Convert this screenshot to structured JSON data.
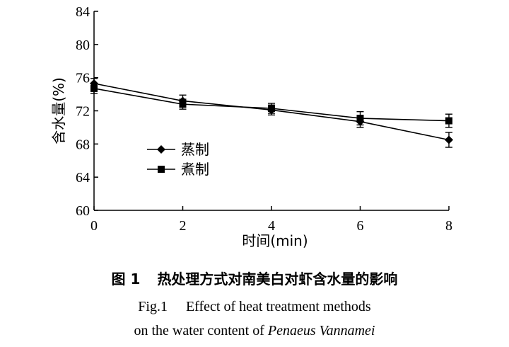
{
  "chart_data": {
    "type": "line",
    "x": [
      0,
      2,
      4,
      6,
      8
    ],
    "xlim": [
      0,
      8
    ],
    "ylim": [
      60,
      84
    ],
    "xticks": [
      "0",
      "2",
      "4",
      "6",
      "8"
    ],
    "yticks": [
      "60",
      "64",
      "68",
      "72",
      "76",
      "80",
      "84"
    ],
    "xlabel": "时间(min)",
    "ylabel": "含水量(%)",
    "legend_position": "center-left",
    "grid": false,
    "series": [
      {
        "name": "蒸制",
        "marker": "diamond",
        "values": [
          75.3,
          73.2,
          72.1,
          70.7,
          68.5
        ],
        "errors": [
          0.6,
          0.7,
          0.6,
          0.7,
          0.9
        ]
      },
      {
        "name": "煮制",
        "marker": "square",
        "values": [
          74.7,
          72.8,
          72.3,
          71.1,
          70.8
        ],
        "errors": [
          0.6,
          0.6,
          0.6,
          0.8,
          0.8
        ]
      }
    ]
  },
  "caption": {
    "cn_number": "图 1",
    "cn_title": "热处理方式对南美白对虾含水量的影响",
    "en_fig": "Fig.1",
    "en_line1": "Effect of heat treatment methods",
    "en_line2_prefix": "on the water content of ",
    "en_species": "Penaeus Vannamei"
  }
}
